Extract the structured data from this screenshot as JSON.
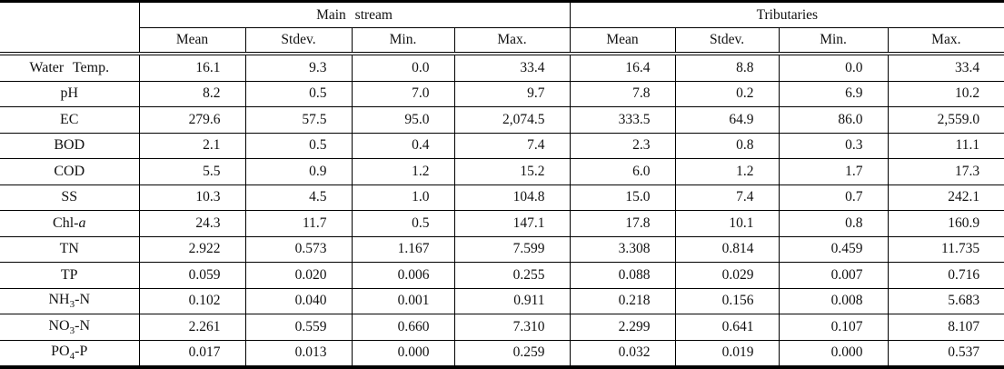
{
  "table": {
    "groups": [
      {
        "label": "Main stream",
        "columns": [
          "Mean",
          "Stdev.",
          "Min.",
          "Max."
        ]
      },
      {
        "label": "Tributaries",
        "columns": [
          "Mean",
          "Stdev.",
          "Min.",
          "Max."
        ]
      }
    ],
    "rows": [
      {
        "label_parts": [
          {
            "text": "Water Temp."
          }
        ],
        "values": [
          "16.1",
          "9.3",
          "0.0",
          "33.4",
          "16.4",
          "8.8",
          "0.0",
          "33.4"
        ]
      },
      {
        "label_parts": [
          {
            "text": "pH"
          }
        ],
        "values": [
          "8.2",
          "0.5",
          "7.0",
          "9.7",
          "7.8",
          "0.2",
          "6.9",
          "10.2"
        ]
      },
      {
        "label_parts": [
          {
            "text": "EC"
          }
        ],
        "values": [
          "279.6",
          "57.5",
          "95.0",
          "2,074.5",
          "333.5",
          "64.9",
          "86.0",
          "2,559.0"
        ]
      },
      {
        "label_parts": [
          {
            "text": "BOD"
          }
        ],
        "values": [
          "2.1",
          "0.5",
          "0.4",
          "7.4",
          "2.3",
          "0.8",
          "0.3",
          "11.1"
        ]
      },
      {
        "label_parts": [
          {
            "text": "COD"
          }
        ],
        "values": [
          "5.5",
          "0.9",
          "1.2",
          "15.2",
          "6.0",
          "1.2",
          "1.7",
          "17.3"
        ]
      },
      {
        "label_parts": [
          {
            "text": "SS"
          }
        ],
        "values": [
          "10.3",
          "4.5",
          "1.0",
          "104.8",
          "15.0",
          "7.4",
          "0.7",
          "242.1"
        ]
      },
      {
        "label_parts": [
          {
            "text": "Chl-"
          },
          {
            "text": "a",
            "style": "italic"
          }
        ],
        "values": [
          "24.3",
          "11.7",
          "0.5",
          "147.1",
          "17.8",
          "10.1",
          "0.8",
          "160.9"
        ]
      },
      {
        "label_parts": [
          {
            "text": "TN"
          }
        ],
        "values": [
          "2.922",
          "0.573",
          "1.167",
          "7.599",
          "3.308",
          "0.814",
          "0.459",
          "11.735"
        ]
      },
      {
        "label_parts": [
          {
            "text": "TP"
          }
        ],
        "values": [
          "0.059",
          "0.020",
          "0.006",
          "0.255",
          "0.088",
          "0.029",
          "0.007",
          "0.716"
        ]
      },
      {
        "label_parts": [
          {
            "text": "NH"
          },
          {
            "text": "3",
            "style": "sub"
          },
          {
            "text": "-N"
          }
        ],
        "values": [
          "0.102",
          "0.040",
          "0.001",
          "0.911",
          "0.218",
          "0.156",
          "0.008",
          "5.683"
        ]
      },
      {
        "label_parts": [
          {
            "text": "NO"
          },
          {
            "text": "3",
            "style": "sub"
          },
          {
            "text": "-N"
          }
        ],
        "values": [
          "2.261",
          "0.559",
          "0.660",
          "7.310",
          "2.299",
          "0.641",
          "0.107",
          "8.107"
        ]
      },
      {
        "label_parts": [
          {
            "text": "PO"
          },
          {
            "text": "4",
            "style": "sub"
          },
          {
            "text": "-P"
          }
        ],
        "values": [
          "0.017",
          "0.013",
          "0.000",
          "0.259",
          "0.032",
          "0.019",
          "0.000",
          "0.537"
        ]
      }
    ]
  }
}
